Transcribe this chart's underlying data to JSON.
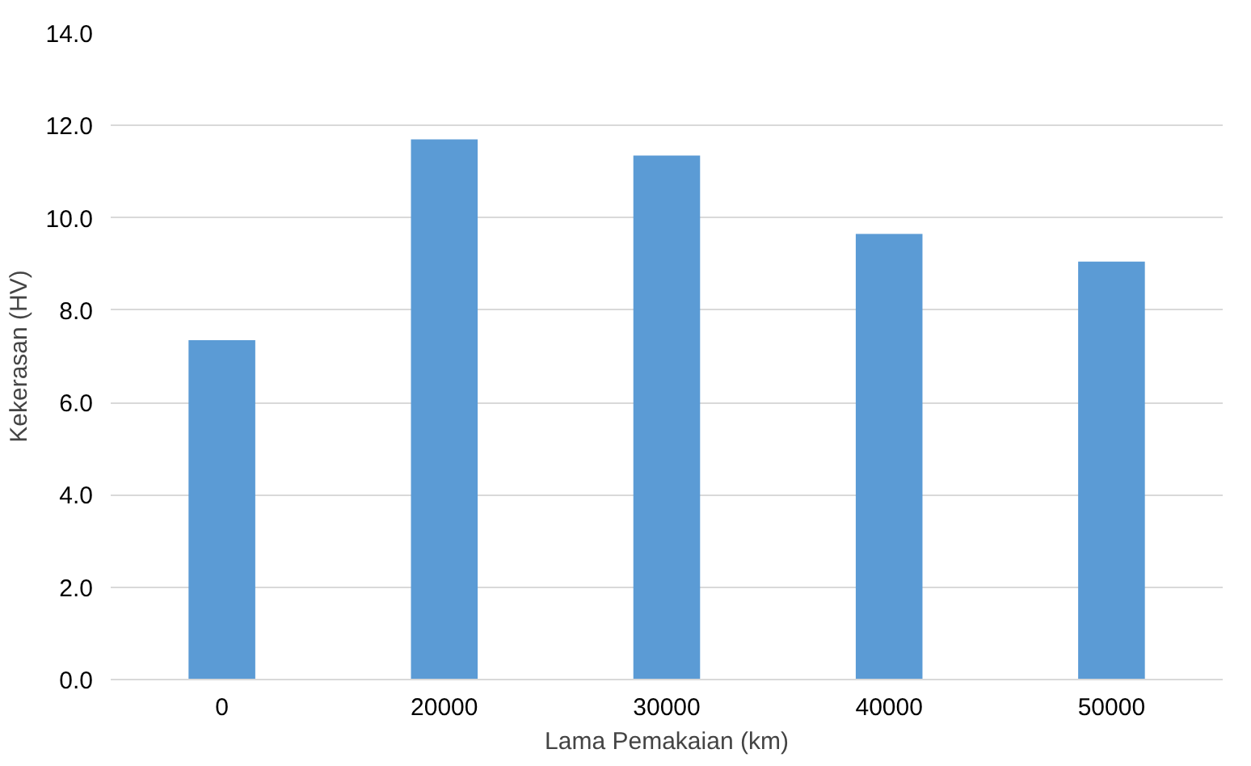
{
  "chart_data": {
    "type": "bar",
    "xlabel": "Lama Pemakaian (km)",
    "ylabel": "Kekerasan (HV)",
    "categories": [
      "0",
      "20000",
      "30000",
      "40000",
      "50000"
    ],
    "values": [
      7.35,
      11.7,
      11.35,
      9.65,
      9.05
    ],
    "color": "#5b9bd5",
    "ylim": [
      0,
      14
    ],
    "yticks": [
      {
        "value": 0,
        "label": "0.0"
      },
      {
        "value": 2,
        "label": "2.0"
      },
      {
        "value": 4,
        "label": "4.0"
      },
      {
        "value": 6,
        "label": "6.0"
      },
      {
        "value": 8,
        "label": "8.0"
      },
      {
        "value": 10,
        "label": "10.0"
      },
      {
        "value": 12,
        "label": "12.0"
      },
      {
        "value": 14,
        "label": "14.0"
      }
    ],
    "grid": "y"
  }
}
